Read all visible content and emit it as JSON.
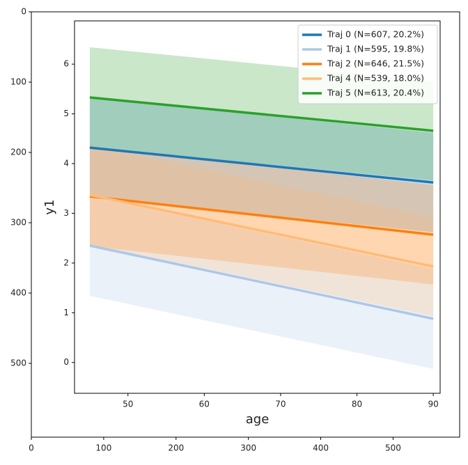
{
  "chart_data": [
    {
      "type": "image-axes",
      "xlim": [
        0,
        592
      ],
      "ylim": [
        605,
        0
      ],
      "xticks": [
        0,
        100,
        200,
        300,
        400,
        500
      ],
      "yticks": [
        0,
        100,
        200,
        300,
        400,
        500
      ]
    },
    {
      "type": "line",
      "xlabel": "age",
      "ylabel": "y1",
      "xlim": [
        43,
        90.9
      ],
      "ylim": [
        -0.62,
        6.87
      ],
      "xticks": [
        50,
        60,
        70,
        80,
        90
      ],
      "yticks": [
        0,
        1,
        2,
        3,
        4,
        5,
        6
      ],
      "x": [
        45,
        90
      ],
      "legend": "upper right",
      "series": [
        {
          "name": "Traj 0 (N=607, 20.2%)",
          "color": "#1f77b4",
          "values": [
            4.32,
            3.62
          ],
          "lower": [
            3.32,
            2.62
          ],
          "upper": [
            5.32,
            4.62
          ]
        },
        {
          "name": "Traj 1 (N=595, 19.8%)",
          "color": "#aec7e8",
          "values": [
            2.35,
            0.88
          ],
          "lower": [
            1.34,
            -0.13
          ],
          "upper": [
            3.35,
            1.88
          ]
        },
        {
          "name": "Traj 2 (N=646, 21.5%)",
          "color": "#ff7f0e",
          "values": [
            3.34,
            2.57
          ],
          "lower": [
            2.34,
            1.57
          ],
          "upper": [
            4.34,
            3.57
          ]
        },
        {
          "name": "Traj 4 (N=539, 18.0%)",
          "color": "#ffbb78",
          "values": [
            3.37,
            1.93
          ],
          "lower": [
            2.37,
            0.93
          ],
          "upper": [
            4.37,
            2.93
          ]
        },
        {
          "name": "Traj 5 (N=613, 20.4%)",
          "color": "#2ca02c",
          "values": [
            5.33,
            4.66
          ],
          "lower": [
            4.33,
            3.66
          ],
          "upper": [
            6.34,
            5.66
          ]
        }
      ]
    }
  ]
}
